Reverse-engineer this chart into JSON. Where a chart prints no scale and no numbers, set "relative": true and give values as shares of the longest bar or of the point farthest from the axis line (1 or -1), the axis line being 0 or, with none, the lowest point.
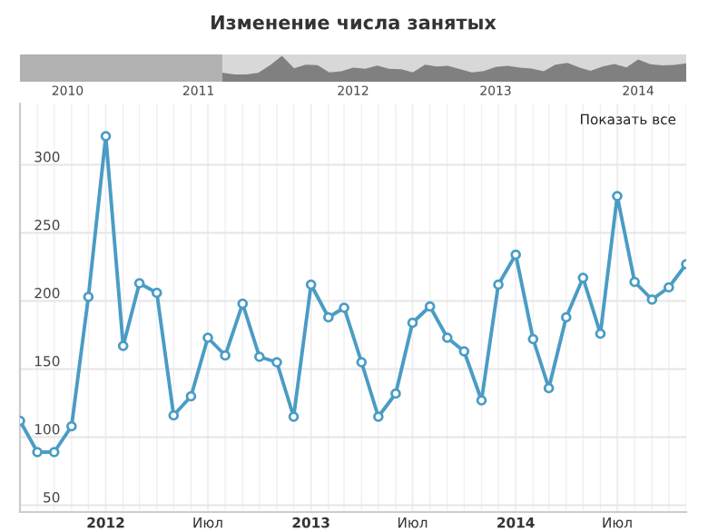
{
  "chart_data": [
    {
      "type": "area",
      "relative": true,
      "title": "Изменение числа занятых",
      "x": [
        "2011-08",
        "2011-09",
        "2011-10",
        "2011-11",
        "2011-12",
        "2012-01",
        "2012-02",
        "2012-03",
        "2012-04",
        "2012-05",
        "2012-06",
        "2012-07",
        "2012-08",
        "2012-09",
        "2012-10",
        "2012-11",
        "2012-12",
        "2013-01",
        "2013-02",
        "2013-03",
        "2013-04",
        "2013-05",
        "2013-06",
        "2013-07",
        "2013-08",
        "2013-09",
        "2013-10",
        "2013-11",
        "2013-12",
        "2014-01",
        "2014-02",
        "2014-03",
        "2014-04",
        "2014-05",
        "2014-06",
        "2014-07",
        "2014-08",
        "2014-09",
        "2014-10",
        "2014-11"
      ],
      "series": [
        {
          "color": "#808080",
          "values": [
            0.35,
            0.28,
            0.28,
            0.34,
            0.63,
            1,
            0.52,
            0.66,
            0.64,
            0.36,
            0.4,
            0.54,
            0.5,
            0.62,
            0.5,
            0.48,
            0.36,
            0.66,
            0.59,
            0.61,
            0.48,
            0.36,
            0.41,
            0.57,
            0.61,
            0.54,
            0.51,
            0.4,
            0.66,
            0.73,
            0.54,
            0.42,
            0.59,
            0.68,
            0.55,
            0.86,
            0.67,
            0.63,
            0.65,
            0.71
          ]
        }
      ],
      "xlim": [
        "2010-03-01",
        "2014-11-01"
      ],
      "xticks": [
        {
          "value": "2010-07-01",
          "label": "2010"
        },
        {
          "value": "2011-06-01",
          "label": "2011"
        },
        {
          "value": "2012-07-01",
          "label": "2012"
        },
        {
          "value": "2013-07-01",
          "label": "2013"
        },
        {
          "value": "2014-07-01",
          "label": "2014"
        }
      ],
      "bands": [
        {
          "axis": "x",
          "from": "2010-03-01",
          "to": "2011-08-01",
          "color": "#a8a8a8"
        }
      ],
      "grid": false
    },
    {
      "type": "line",
      "x": [
        "2011-08",
        "2011-09",
        "2011-10",
        "2011-11",
        "2011-12",
        "2012-01",
        "2012-02",
        "2012-03",
        "2012-04",
        "2012-05",
        "2012-06",
        "2012-07",
        "2012-08",
        "2012-09",
        "2012-10",
        "2012-11",
        "2012-12",
        "2013-01",
        "2013-02",
        "2013-03",
        "2013-04",
        "2013-05",
        "2013-06",
        "2013-07",
        "2013-08",
        "2013-09",
        "2013-10",
        "2013-11",
        "2013-12",
        "2014-01",
        "2014-02",
        "2014-03",
        "2014-04",
        "2014-05",
        "2014-06",
        "2014-07",
        "2014-08",
        "2014-09",
        "2014-10",
        "2014-11"
      ],
      "series": [
        {
          "color": "#4a9cc4",
          "values": [
            112,
            89,
            89,
            108,
            203,
            321,
            167,
            213,
            206,
            116,
            130,
            173,
            160,
            198,
            159,
            155,
            115,
            212,
            188,
            195,
            155,
            115,
            132,
            184,
            196,
            173,
            163,
            127,
            212,
            234,
            172,
            136,
            188,
            217,
            176,
            277,
            214,
            201,
            210,
            227
          ]
        }
      ],
      "xlim": [
        "2011-08-01",
        "2014-11-01"
      ],
      "xticks": [
        {
          "value": "2012-01-01",
          "label": "2012"
        },
        {
          "value": "2012-07-01",
          "label": "Июл"
        },
        {
          "value": "2013-01-01",
          "label": "2013"
        },
        {
          "value": "2013-07-01",
          "label": "Июл"
        },
        {
          "value": "2014-01-01",
          "label": "2014"
        },
        {
          "value": "2014-07-01",
          "label": "Июл"
        }
      ],
      "ylim": [
        45,
        345
      ],
      "yticks": [
        50,
        100,
        150,
        200,
        250,
        300
      ],
      "grid": true,
      "marker": "circle",
      "line_style": "solid",
      "legend": false,
      "annotations": [
        "Показать все"
      ]
    }
  ]
}
